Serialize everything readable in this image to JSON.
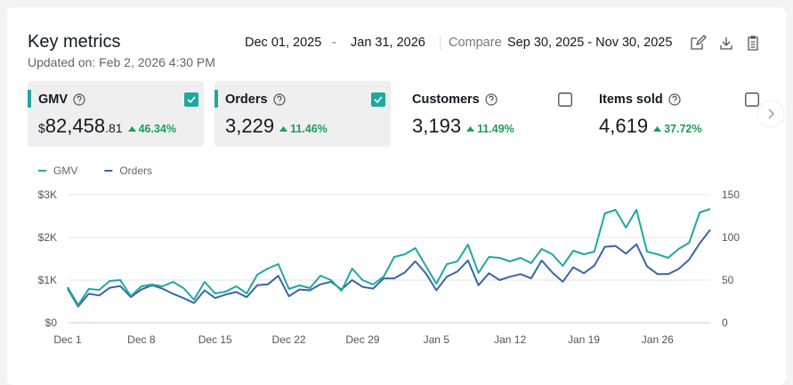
{
  "header": {
    "title": "Key metrics",
    "updated": "Updated on: Feb 2, 2026 4:30 PM",
    "date_start": "Dec 01, 2025",
    "date_sep": "-",
    "date_end": "Jan 31, 2026",
    "compare_label": "Compare",
    "compare_range": "Sep 30, 2025 - Nov 30, 2025"
  },
  "metrics": [
    {
      "name": "GMV",
      "prefix": "$",
      "value": "82,458",
      "suffix": ".81",
      "change": "46.34%",
      "checked": true,
      "selected": true
    },
    {
      "name": "Orders",
      "value": "3,229",
      "change": "11.46%",
      "checked": true,
      "selected": true
    },
    {
      "name": "Customers",
      "value": "3,193",
      "change": "11.49%",
      "checked": false,
      "selected": false
    },
    {
      "name": "Items sold",
      "value": "4,619",
      "change": "37.72%",
      "checked": false,
      "selected": false
    }
  ],
  "chart_data": {
    "type": "line",
    "categories": [
      "Dec 1",
      null,
      null,
      null,
      null,
      null,
      null,
      "Dec 8",
      null,
      null,
      null,
      null,
      null,
      null,
      "Dec 15",
      null,
      null,
      null,
      null,
      null,
      null,
      "Dec 22",
      null,
      null,
      null,
      null,
      null,
      null,
      "Dec 29",
      null,
      null,
      null,
      null,
      null,
      null,
      "Jan 5",
      null,
      null,
      null,
      null,
      null,
      null,
      "Jan 12",
      null,
      null,
      null,
      null,
      null,
      null,
      "Jan 19",
      null,
      null,
      null,
      null,
      null,
      null,
      "Jan 26",
      null,
      null,
      null,
      null,
      null
    ],
    "series": [
      {
        "name": "GMV",
        "color": "#1ea89f",
        "values": [
          833,
          417,
          792,
          771,
          979,
          1000,
          625,
          854,
          896,
          854,
          958,
          812,
          542,
          958,
          688,
          729,
          854,
          688,
          1125,
          1271,
          1375,
          792,
          875,
          812,
          1104,
          1000,
          750,
          1271,
          1000,
          896,
          1083,
          1542,
          1604,
          1750,
          1333,
          917,
          1375,
          1437,
          1833,
          1167,
          1542,
          1521,
          1437,
          1521,
          1396,
          1729,
          1604,
          1333,
          1687,
          1604,
          1667,
          2562,
          2646,
          2229,
          2646,
          1667,
          1604,
          1521,
          1729,
          1875,
          2583,
          2667
        ]
      },
      {
        "name": "Orders",
        "color": "#3c64a6",
        "axis": "y2",
        "values": [
          40,
          19,
          34,
          32,
          41,
          43,
          30,
          39,
          44,
          40,
          34,
          29,
          23,
          38,
          29,
          33,
          36,
          30,
          44,
          45,
          55,
          31,
          39,
          38,
          45,
          48,
          39,
          50,
          42,
          40,
          52,
          52,
          59,
          72,
          58,
          38,
          54,
          60,
          73,
          44,
          58,
          50,
          54,
          57,
          52,
          73,
          59,
          48,
          65,
          58,
          67,
          89,
          90,
          81,
          92,
          66,
          57,
          57,
          63,
          74,
          93,
          109
        ]
      }
    ],
    "ylim": [
      0,
      3000
    ],
    "yticks": [
      {
        "value": 0,
        "label": "$0"
      },
      {
        "value": 1000,
        "label": "$1K"
      },
      {
        "value": 2000,
        "label": "$2K"
      },
      {
        "value": 3000,
        "label": "$3K"
      }
    ],
    "y2lim": [
      0,
      150
    ],
    "y2ticks": [
      0,
      50,
      100,
      150
    ],
    "grid": true,
    "legend": "top-left"
  }
}
